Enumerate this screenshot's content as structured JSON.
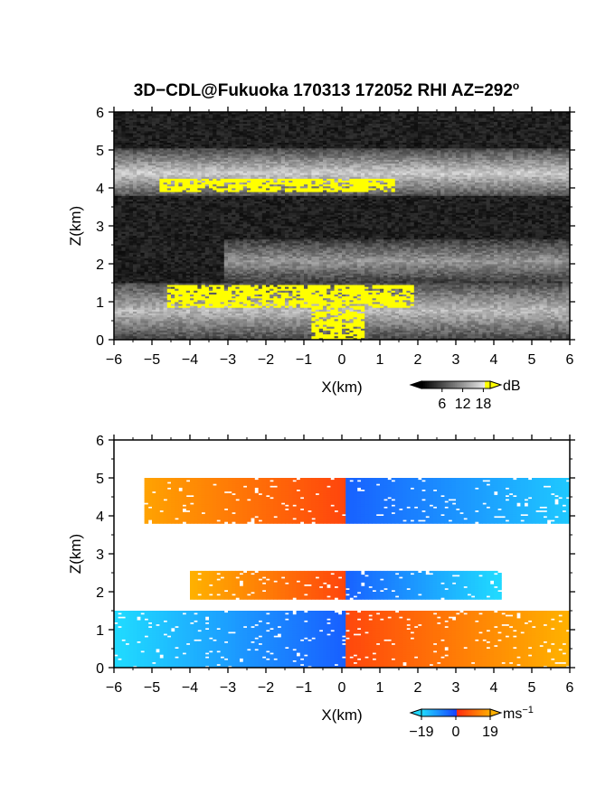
{
  "title": {
    "main": "3D−CDL@Fukuoka 170313 172052 RHI AZ=292",
    "superscript": "o"
  },
  "colors": {
    "intensity_highlight": "#ffff00",
    "velocity_negative": "#1640ff",
    "velocity_positive": "#ff2a10",
    "velocity_negative_far": "#20d8ff",
    "velocity_positive_far": "#ffb000",
    "axis": "#000000"
  },
  "chart_data": [
    {
      "type": "heatmap",
      "name": "intensity",
      "xlabel": "X(km)",
      "ylabel": "Z(km)",
      "xlim": [
        -6,
        6
      ],
      "ylim": [
        0,
        6
      ],
      "xticks": [
        -6,
        -5,
        -4,
        -3,
        -2,
        -1,
        0,
        1,
        2,
        3,
        4,
        5,
        6
      ],
      "yticks": [
        0,
        1,
        2,
        3,
        4,
        5,
        6
      ],
      "colorbar": {
        "unit": "dB",
        "ticks": [
          6,
          12,
          18
        ],
        "range": [
          0,
          20
        ],
        "colormap": "grayscale",
        "high_color": "#ffff00"
      },
      "layers": [
        {
          "x_start": -6,
          "x_end": 6,
          "z_low": 3.75,
          "z_high": 5.0,
          "mean_db": 10
        },
        {
          "x_start": -3.2,
          "x_end": 6,
          "z_low": 1.5,
          "z_high": 2.6,
          "mean_db": 7
        },
        {
          "x_start": -6,
          "x_end": 6,
          "z_low": 0,
          "z_high": 1.5,
          "mean_db": 9
        }
      ],
      "high_regions": [
        {
          "x_start": -4.9,
          "x_end": 1.3,
          "z_low": 3.85,
          "z_high": 4.2
        },
        {
          "x_start": -4.7,
          "x_end": 1.8,
          "z_low": 0.85,
          "z_high": 1.45
        },
        {
          "x_start": -0.9,
          "x_end": 0.5,
          "z_low": 0.0,
          "z_high": 0.9
        }
      ]
    },
    {
      "type": "heatmap",
      "name": "radial_velocity",
      "xlabel": "X(km)",
      "ylabel": "Z(km)",
      "xlim": [
        -6,
        6
      ],
      "ylim": [
        0,
        6
      ],
      "xticks": [
        -6,
        -5,
        -4,
        -3,
        -2,
        -1,
        0,
        1,
        2,
        3,
        4,
        5,
        6
      ],
      "yticks": [
        0,
        1,
        2,
        3,
        4,
        5,
        6
      ],
      "colorbar": {
        "unit": "ms",
        "unit_exponent": "−1",
        "ticks": [
          -19,
          0,
          19
        ],
        "tick_labels": [
          "−19",
          "0",
          "19"
        ],
        "range": [
          -19,
          19
        ]
      },
      "layers": [
        {
          "x_start": -5.3,
          "x_end": 6,
          "z_low": 3.75,
          "z_high": 4.95,
          "sign_change_x": 0,
          "velocity_left": 12,
          "velocity_right": -12
        },
        {
          "x_start": -4.1,
          "x_end": 4.1,
          "z_low": 1.8,
          "z_high": 2.5,
          "sign_change_x": 0,
          "velocity_left": 14,
          "velocity_right": -14
        },
        {
          "x_start": -6,
          "x_end": 6,
          "z_low": 0,
          "z_high": 1.5,
          "sign_change_x": 0,
          "velocity_left": -14,
          "velocity_right": 14
        }
      ]
    }
  ]
}
